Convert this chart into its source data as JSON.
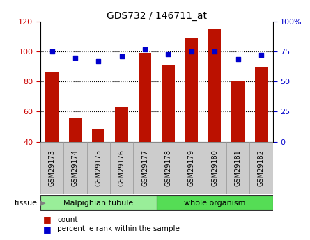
{
  "title": "GDS732 / 146711_at",
  "categories": [
    "GSM29173",
    "GSM29174",
    "GSM29175",
    "GSM29176",
    "GSM29177",
    "GSM29178",
    "GSM29179",
    "GSM29180",
    "GSM29181",
    "GSM29182"
  ],
  "bar_values": [
    86,
    56,
    48,
    63,
    99,
    91,
    109,
    115,
    80,
    90
  ],
  "dot_values": [
    75,
    70,
    67,
    71,
    77,
    73,
    75,
    75,
    69,
    72
  ],
  "ylim_left": [
    40,
    120
  ],
  "ylim_right": [
    0,
    100
  ],
  "yticks_left": [
    40,
    60,
    80,
    100,
    120
  ],
  "yticks_right": [
    0,
    25,
    50,
    75,
    100
  ],
  "ytick_labels_right": [
    "0",
    "25",
    "50",
    "75",
    "100%"
  ],
  "bar_color": "#bb1100",
  "dot_color": "#0000cc",
  "gridline_ticks": [
    60,
    80,
    100
  ],
  "tissue_groups": [
    {
      "label": "Malpighian tubule",
      "start": 0,
      "end": 5,
      "color": "#99ee99"
    },
    {
      "label": "whole organism",
      "start": 5,
      "end": 10,
      "color": "#55dd55"
    }
  ],
  "legend_items": [
    {
      "label": "count",
      "color": "#bb1100"
    },
    {
      "label": "percentile rank within the sample",
      "color": "#0000cc"
    }
  ],
  "tissue_label": "tissue",
  "left_tick_color": "#cc0000",
  "right_tick_color": "#0000cc",
  "spine_color": "#000000",
  "tickbox_color": "#cccccc",
  "tickbox_edge_color": "#999999"
}
